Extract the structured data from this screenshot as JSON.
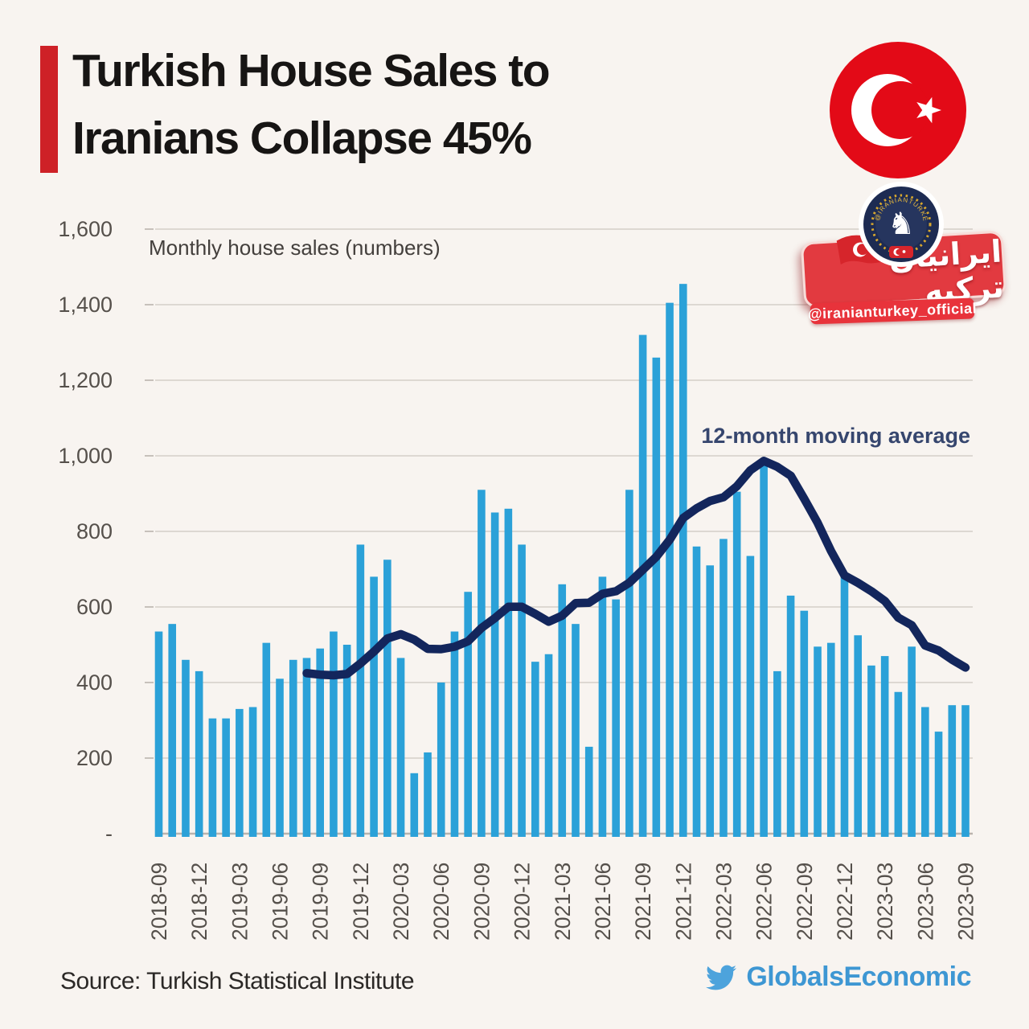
{
  "header": {
    "title_line1": "Turkish House Sales to",
    "title_line2": "Iranians Collapse 45%"
  },
  "badge": {
    "banner_text": "ایرانیان ترکیه",
    "handle_text": "@iranianturkey_official",
    "emblem_arc_text": "@IRANIANTURKEY_OFFICIAL"
  },
  "footer": {
    "source": "Source: Turkish Statistical Institute",
    "brand": "GlobalsEconomic"
  },
  "colors": {
    "background": "#f8f4f0",
    "accent_bar": "#ce2127",
    "flag_red": "#e30a17",
    "badge_red": "#e23a40",
    "brand_blue": "#3e97d3"
  },
  "chart_data": {
    "type": "bar",
    "title": "Turkish House Sales to Iranians Collapse 45%",
    "inner_label": "Monthly house sales (numbers)",
    "moving_average_label": "12-month moving average",
    "moving_average_window": 12,
    "ylim": [
      0,
      1600
    ],
    "grid": "horizontal",
    "y_ticks": [
      "1,600",
      "1,400",
      "1,200",
      "1,000",
      "800",
      "600",
      "400",
      "200",
      "-"
    ],
    "x_tick_every": 3,
    "x_tick_labels": [
      "2018-09",
      "2018-12",
      "2019-03",
      "2019-06",
      "2019-09",
      "2019-12",
      "2020-03",
      "2020-06",
      "2020-09",
      "2020-12",
      "2021-03",
      "2021-06",
      "2021-09",
      "2021-12",
      "2022-03",
      "2022-06",
      "2022-09",
      "2022-12",
      "2023-03",
      "2023-06",
      "2023-09"
    ],
    "categories": [
      "2018-09",
      "2018-10",
      "2018-11",
      "2018-12",
      "2019-01",
      "2019-02",
      "2019-03",
      "2019-04",
      "2019-05",
      "2019-06",
      "2019-07",
      "2019-08",
      "2019-09",
      "2019-10",
      "2019-11",
      "2019-12",
      "2020-01",
      "2020-02",
      "2020-03",
      "2020-04",
      "2020-05",
      "2020-06",
      "2020-07",
      "2020-08",
      "2020-09",
      "2020-10",
      "2020-11",
      "2020-12",
      "2021-01",
      "2021-02",
      "2021-03",
      "2021-04",
      "2021-05",
      "2021-06",
      "2021-07",
      "2021-08",
      "2021-09",
      "2021-10",
      "2021-11",
      "2021-12",
      "2022-01",
      "2022-02",
      "2022-03",
      "2022-04",
      "2022-05",
      "2022-06",
      "2022-07",
      "2022-08",
      "2022-09",
      "2022-10",
      "2022-11",
      "2022-12",
      "2023-01",
      "2023-02",
      "2023-03",
      "2023-04",
      "2023-05",
      "2023-06",
      "2023-07",
      "2023-08",
      "2023-09"
    ],
    "values": [
      535,
      555,
      460,
      430,
      305,
      305,
      330,
      335,
      505,
      410,
      460,
      465,
      490,
      535,
      500,
      765,
      680,
      725,
      465,
      160,
      215,
      400,
      535,
      640,
      910,
      850,
      860,
      765,
      455,
      475,
      660,
      555,
      230,
      680,
      620,
      910,
      1320,
      1260,
      1405,
      1455,
      760,
      710,
      780,
      905,
      735,
      980,
      430,
      630,
      590,
      495,
      505,
      680,
      525,
      445,
      470,
      375,
      495,
      335,
      270,
      340,
      340
    ],
    "colors": {
      "bar": "#2ba1d8",
      "moving_average": "#13265c",
      "moving_average_label": "#36466e",
      "grid": "#ddd8d2",
      "axis": "#b9b3ad",
      "tick_text": "#55504b",
      "inner_label_text": "#433f3c"
    }
  }
}
